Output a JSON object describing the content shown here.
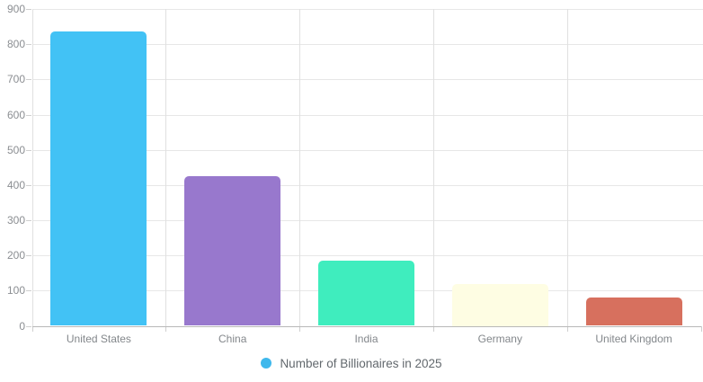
{
  "chart_data": {
    "type": "bar",
    "title": "",
    "xlabel": "",
    "ylabel": "",
    "categories": [
      "United States",
      "China",
      "India",
      "Germany",
      "United Kingdom"
    ],
    "values": [
      835,
      425,
      185,
      120,
      80
    ],
    "bar_colors": [
      "#42C2F5",
      "#9878CD",
      "#3FEDBE",
      "#FEFDE3",
      "#D7705E"
    ],
    "ylim": [
      0,
      900
    ],
    "yticks": [
      0,
      100,
      200,
      300,
      400,
      500,
      600,
      700,
      800,
      900
    ],
    "grid": true,
    "legend": {
      "position": "bottom",
      "label": "Number of Billionaires in 2025",
      "marker_color": "#3FB8EC"
    },
    "colors": {
      "gridline": "#e7e7e7",
      "axis_line": "#b8b8b8",
      "tick": "#cfcfcf",
      "axis_label_text": "#8b8e92",
      "background": "#ffffff"
    }
  }
}
